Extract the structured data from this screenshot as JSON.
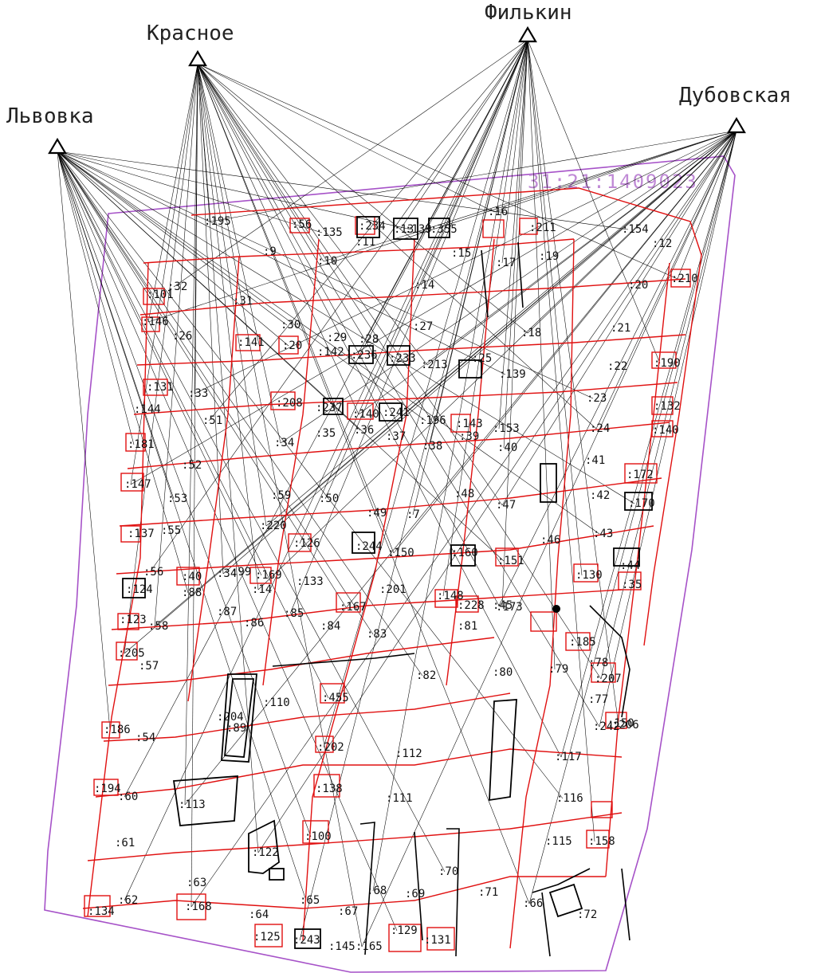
{
  "map": {
    "quarter_number": "31:21:1409023",
    "colors": {
      "boundary": "#a652c8",
      "parcel_red": "#e01010",
      "line_black": "#000000",
      "quarter_text": "#c08ad6"
    },
    "stations": [
      {
        "id": "st-krasnoe",
        "name": "Красное"
      },
      {
        "id": "st-filkin",
        "name": "Филькин"
      },
      {
        "id": "st-lvovka",
        "name": "Львовка"
      },
      {
        "id": "st-dubovskaya",
        "name": "Дубовская"
      }
    ],
    "parcels": [
      ":195",
      ":56",
      ":135",
      ":234",
      ":13",
      ":355",
      ":16",
      ":211",
      ":154",
      ":12",
      ":32",
      ":9",
      ":10",
      ":11",
      ":139",
      ":15",
      ":17",
      ":19",
      ":210",
      ":20",
      ":101",
      ":31",
      ":14",
      ":21",
      ":146",
      ":26",
      ":30",
      ":29",
      ":28",
      ":27",
      ":18",
      ":141",
      ":20",
      ":142",
      ":236",
      ":233",
      ":213",
      ":25",
      ":139",
      ":22",
      ":190",
      ":131",
      ":33",
      ":208",
      ":23",
      ":144",
      ":51",
      ":237",
      ":140",
      ":241",
      ":196",
      ":143",
      ":153",
      ":132",
      ":34",
      ":35",
      ":36",
      ":37",
      ":38",
      ":39",
      ":24",
      ":140",
      ":181",
      ":52",
      ":40",
      ":41",
      ":147",
      ":172",
      ":53",
      ":59",
      ":50",
      ":48",
      ":47",
      ":42",
      ":170",
      ":49",
      ":7",
      ":55",
      ":220",
      ":46",
      ":43",
      ":137",
      ":126",
      ":244",
      ":150",
      ":160",
      ":151",
      ":44",
      ":56",
      ":40",
      ":34",
      ":99",
      ":169",
      ":133",
      ":130",
      ":35",
      ":14",
      ":124",
      ":88",
      ":201",
      ":148",
      ":228",
      ":45",
      ":87",
      ":167",
      ":86",
      ":85",
      ":123",
      ":58",
      ":84",
      ":83",
      ":81",
      ":173",
      ":185",
      ":205",
      ":57",
      ":82",
      ":80",
      ":79",
      ":78",
      ":207",
      ":110",
      ":455",
      ":77",
      ":206",
      ":89",
      ":242",
      ":150",
      ":186",
      ":54",
      ":202",
      ":112",
      ":117",
      ":138",
      ":116",
      ":194",
      ":60",
      ":111",
      ":113",
      ":204",
      ":100",
      ":115",
      ":158",
      ":61",
      ":122",
      ":71",
      ":70",
      ":134",
      ":62",
      ":63",
      ":168",
      ":64",
      ":65",
      ":67",
      ":68",
      ":69",
      ":66",
      ":72",
      ":129",
      ":131",
      ":243",
      ":145",
      ":165",
      ":125"
    ]
  }
}
